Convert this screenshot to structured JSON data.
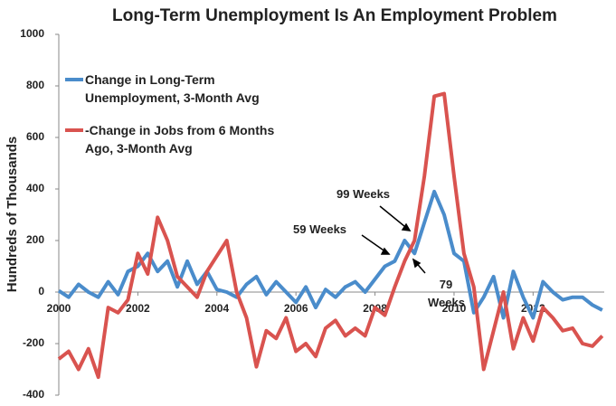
{
  "chart_data": {
    "type": "line",
    "title": "Long-Term Unemployment Is An Employment Problem",
    "y_label": "Hundreds of Thousands",
    "x": [
      2000,
      2000.25,
      2000.5,
      2000.75,
      2001,
      2001.25,
      2001.5,
      2001.75,
      2002,
      2002.25,
      2002.5,
      2002.75,
      2003,
      2003.25,
      2003.5,
      2003.75,
      2004,
      2004.25,
      2004.5,
      2004.75,
      2005,
      2005.25,
      2005.5,
      2005.75,
      2006,
      2006.25,
      2006.5,
      2006.75,
      2007,
      2007.25,
      2007.5,
      2007.75,
      2008,
      2008.25,
      2008.5,
      2008.75,
      2009,
      2009.25,
      2009.5,
      2009.75,
      2010,
      2010.25,
      2010.5,
      2010.75,
      2011,
      2011.25,
      2011.5,
      2011.75,
      2012,
      2012.25,
      2012.5,
      2012.75,
      2013,
      2013.25,
      2013.5,
      2013.75
    ],
    "series": [
      {
        "name": "Change in Long-Term Unemployment, 3-Month Avg",
        "color": "#4a8ccb",
        "values": [
          5,
          -20,
          30,
          0,
          -20,
          40,
          -10,
          80,
          100,
          150,
          80,
          120,
          20,
          120,
          30,
          80,
          10,
          0,
          -20,
          30,
          60,
          -10,
          40,
          0,
          -40,
          20,
          -60,
          10,
          -20,
          20,
          40,
          0,
          50,
          100,
          120,
          200,
          150,
          270,
          390,
          300,
          150,
          120,
          -80,
          -20,
          60,
          -100,
          80,
          -20,
          -100,
          40,
          0,
          -30,
          -20,
          -20,
          -50,
          -70
        ]
      },
      {
        "name": "-Change in Jobs from 6 Months Ago, 3-Month Avg",
        "color": "#d9534f",
        "values": [
          -260,
          -230,
          -300,
          -220,
          -330,
          -60,
          -80,
          -30,
          150,
          70,
          290,
          200,
          60,
          20,
          -20,
          80,
          140,
          200,
          0,
          -100,
          -290,
          -150,
          -180,
          -100,
          -230,
          -200,
          -250,
          -140,
          -110,
          -170,
          -140,
          -170,
          -60,
          -90,
          20,
          120,
          200,
          450,
          760,
          770,
          450,
          150,
          20,
          -300,
          -150,
          0,
          -220,
          -100,
          -190,
          -60,
          -100,
          -150,
          -140,
          -200,
          -210,
          -170
        ]
      }
    ],
    "xlim": [
      2000,
      2013.8
    ],
    "xticks": [
      2000,
      2002,
      2004,
      2006,
      2008,
      2010,
      2012
    ],
    "ylim": [
      -400,
      1000
    ],
    "yticks": [
      -400,
      -200,
      0,
      200,
      400,
      600,
      800,
      1000
    ],
    "grid": false,
    "annotations": [
      "99 Weeks",
      "59 Weeks",
      "79 Weeks"
    ]
  }
}
